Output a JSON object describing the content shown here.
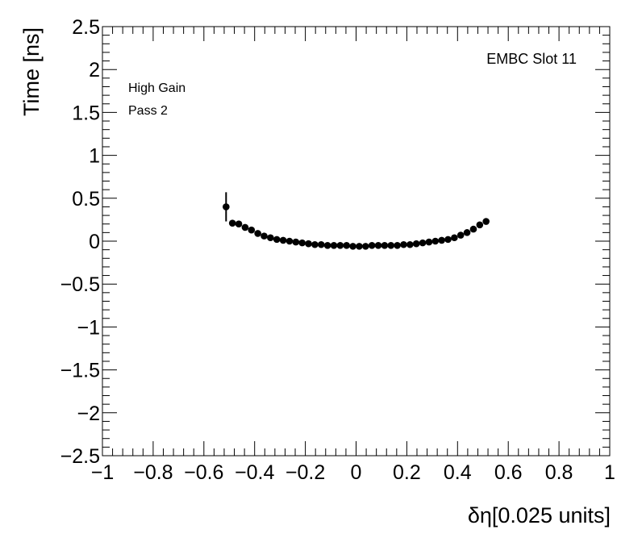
{
  "chart_data": {
    "type": "scatter",
    "title": "",
    "xlabel": "δη[0.025 units]",
    "ylabel": "Time [ns]",
    "xlim": [
      -1,
      1
    ],
    "ylim": [
      -2.5,
      2.5
    ],
    "x_ticks": [
      "−1",
      "−0.8",
      "−0.6",
      "−0.4",
      "−0.2",
      "0",
      "0.2",
      "0.4",
      "0.6",
      "0.8",
      "1"
    ],
    "y_ticks": [
      "−2.5",
      "−2",
      "−1.5",
      "−1",
      "−0.5",
      "0",
      "0.5",
      "1",
      "1.5",
      "2",
      "2.5"
    ],
    "annotations": {
      "slot": "EMBC Slot 11",
      "gain": "High Gain",
      "pass": "Pass 2"
    },
    "marker_color": "#000000",
    "grid": false,
    "series": [
      {
        "x": [
          -0.5125,
          -0.4875,
          -0.4625,
          -0.4375,
          -0.4125,
          -0.3875,
          -0.3625,
          -0.3375,
          -0.3125,
          -0.2875,
          -0.2625,
          -0.2375,
          -0.2125,
          -0.1875,
          -0.1625,
          -0.1375,
          -0.1125,
          -0.0875,
          -0.0625,
          -0.0375,
          -0.0125,
          0.0125,
          0.0375,
          0.0625,
          0.0875,
          0.1125,
          0.1375,
          0.1625,
          0.1875,
          0.2125,
          0.2375,
          0.2625,
          0.2875,
          0.3125,
          0.3375,
          0.3625,
          0.3875,
          0.4125,
          0.4375,
          0.4625,
          0.4875,
          0.5125
        ],
        "y": [
          0.4,
          0.21,
          0.2,
          0.16,
          0.13,
          0.09,
          0.06,
          0.04,
          0.02,
          0.01,
          0.0,
          -0.01,
          -0.02,
          -0.03,
          -0.04,
          -0.04,
          -0.05,
          -0.05,
          -0.05,
          -0.05,
          -0.06,
          -0.06,
          -0.06,
          -0.05,
          -0.05,
          -0.05,
          -0.05,
          -0.05,
          -0.04,
          -0.04,
          -0.03,
          -0.02,
          -0.01,
          0.0,
          0.01,
          0.02,
          0.04,
          0.07,
          0.1,
          0.14,
          0.19,
          0.23
        ],
        "yerr": [
          0.17,
          0.03,
          0.02,
          0.02,
          0.01,
          0.01,
          0.01,
          0.01,
          0.01,
          0.01,
          0.01,
          0.01,
          0.01,
          0.01,
          0.01,
          0.01,
          0.01,
          0.01,
          0.01,
          0.01,
          0.01,
          0.01,
          0.01,
          0.01,
          0.01,
          0.01,
          0.01,
          0.01,
          0.01,
          0.01,
          0.01,
          0.01,
          0.01,
          0.01,
          0.01,
          0.01,
          0.01,
          0.01,
          0.01,
          0.02,
          0.02,
          0.02
        ]
      }
    ]
  }
}
